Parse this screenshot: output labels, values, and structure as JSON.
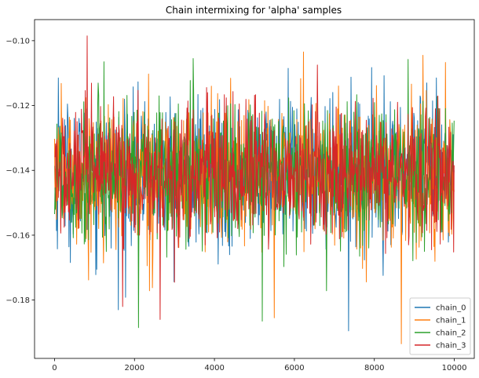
{
  "chart_data": {
    "type": "line",
    "title": "Chain intermixing for 'alpha' samples",
    "xlabel": "",
    "ylabel": "",
    "xlim": [
      -500,
      10500
    ],
    "ylim": [
      -0.198,
      -0.0935
    ],
    "x_ticks": [
      0,
      2000,
      4000,
      6000,
      8000,
      10000
    ],
    "x_tick_labels": [
      "0",
      "2000",
      "4000",
      "6000",
      "8000",
      "10000"
    ],
    "y_ticks": [
      -0.18,
      -0.16,
      -0.14,
      -0.12,
      -0.1
    ],
    "y_tick_labels": [
      "−0.18",
      "−0.16",
      "−0.14",
      "−0.12",
      "−0.10"
    ],
    "grid": false,
    "legend_position": "lower-right",
    "n_samples": 10000,
    "series": [
      {
        "name": "chain_0",
        "color": "#1f77b4",
        "mean": -0.141,
        "typical_range": [
          -0.164,
          -0.116
        ],
        "extremes": [
          {
            "x": 7360,
            "y": -0.1895
          },
          {
            "x": 1600,
            "y": -0.183
          },
          {
            "x": 9550,
            "y": -0.1115
          },
          {
            "x": 100,
            "y": -0.1115
          }
        ]
      },
      {
        "name": "chain_1",
        "color": "#ff7f0e",
        "mean": -0.141,
        "typical_range": [
          -0.164,
          -0.116
        ],
        "extremes": [
          {
            "x": 8680,
            "y": -0.1935
          },
          {
            "x": 6230,
            "y": -0.1035
          },
          {
            "x": 9220,
            "y": -0.1045
          },
          {
            "x": 5500,
            "y": -0.1855
          }
        ]
      },
      {
        "name": "chain_2",
        "color": "#2ca02c",
        "mean": -0.141,
        "typical_range": [
          -0.164,
          -0.116
        ],
        "extremes": [
          {
            "x": 2100,
            "y": -0.1885
          },
          {
            "x": 5200,
            "y": -0.1865
          },
          {
            "x": 3470,
            "y": -0.1055
          },
          {
            "x": 1230,
            "y": -0.1065
          }
        ]
      },
      {
        "name": "chain_3",
        "color": "#d62728",
        "mean": -0.141,
        "typical_range": [
          -0.162,
          -0.118
        ],
        "extremes": [
          {
            "x": 820,
            "y": -0.0985
          },
          {
            "x": 2640,
            "y": -0.186
          },
          {
            "x": 1700,
            "y": -0.182
          },
          {
            "x": 6580,
            "y": -0.1075
          }
        ]
      }
    ]
  }
}
